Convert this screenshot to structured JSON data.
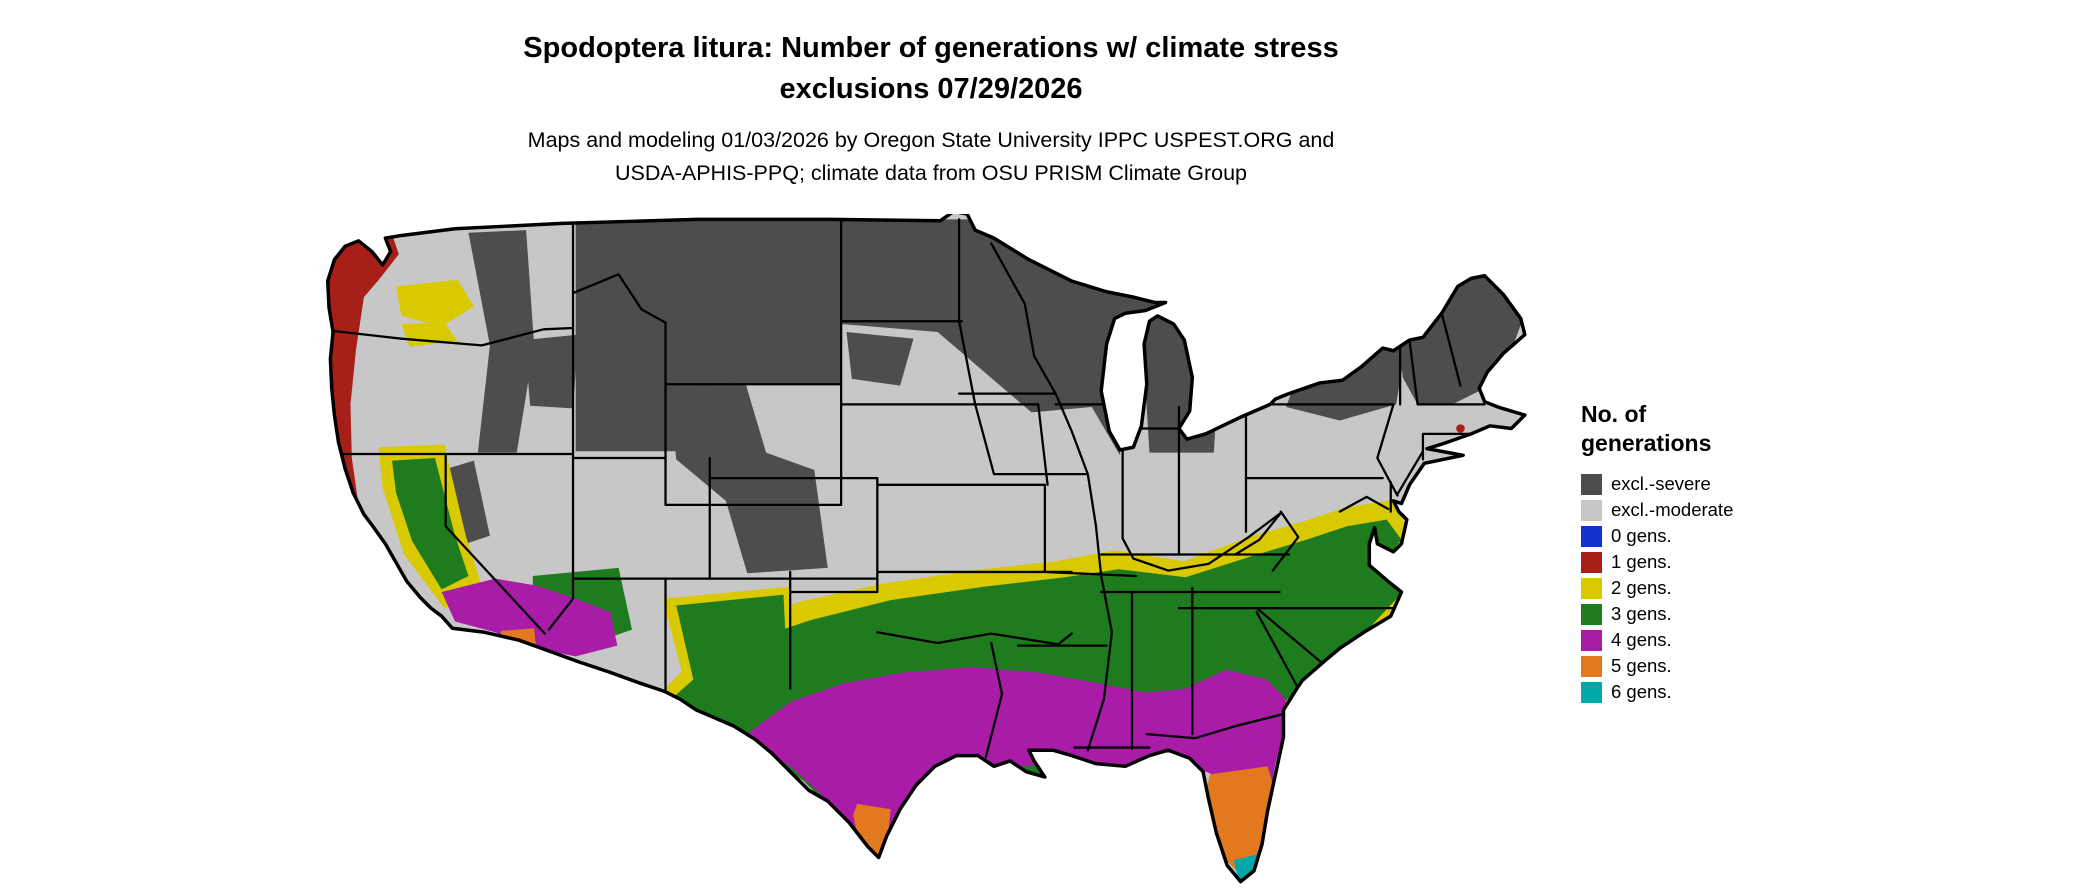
{
  "title": {
    "line1": "Spodoptera litura: Number of generations w/ climate stress",
    "line2": "exclusions 07/29/2026"
  },
  "subtitle": {
    "line1": "Maps and modeling 01/03/2026 by Oregon State University IPPC USPEST.ORG and",
    "line2": "USDA-APHIS-PPQ; climate data from OSU PRISM Climate Group"
  },
  "legend": {
    "title_line1": "No. of",
    "title_line2": "generations",
    "items": [
      {
        "key": "excl_severe",
        "label": "excl.-severe",
        "color": "#4D4D4D"
      },
      {
        "key": "excl_moderate",
        "label": "excl.-moderate",
        "color": "#C7C7C7"
      },
      {
        "key": "gens0",
        "label": "0 gens.",
        "color": "#1133CC"
      },
      {
        "key": "gens1",
        "label": "1 gens.",
        "color": "#A62019"
      },
      {
        "key": "gens2",
        "label": "2 gens.",
        "color": "#D9C900"
      },
      {
        "key": "gens3",
        "label": "3 gens.",
        "color": "#1E7B1E"
      },
      {
        "key": "gens4",
        "label": "4 gens.",
        "color": "#A81CA8"
      },
      {
        "key": "gens5",
        "label": "5 gens.",
        "color": "#E2791E"
      },
      {
        "key": "gens6",
        "label": "6 gens.",
        "color": "#00A8A8"
      }
    ]
  },
  "map": {
    "name": "conus-generations-map",
    "background": "#FFFFFF",
    "outline_color": "#000000",
    "state_line_color": "#000000"
  }
}
